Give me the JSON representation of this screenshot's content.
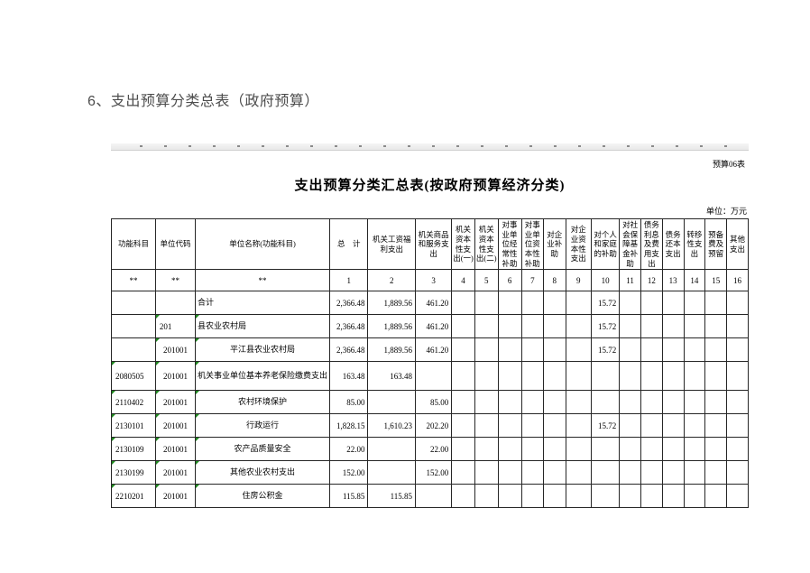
{
  "page": {
    "heading": "6、支出预算分类总表（政府预算）"
  },
  "sheet": {
    "form_code": "预算06表",
    "title": "支出预算分类汇总表(按政府预算经济分类)",
    "unit_note": "单位：万元"
  },
  "table": {
    "columns": [
      {
        "label": "功能科目",
        "code": "**"
      },
      {
        "label": "单位代码",
        "code": "**"
      },
      {
        "label": "单位名称(功能科目)",
        "code": "**"
      },
      {
        "label": "总　计",
        "code": "1"
      },
      {
        "label": "机关工资福利支出",
        "code": "2"
      },
      {
        "label": "机关商品和服务支出",
        "code": "3"
      },
      {
        "label": "机关资本性支出(一)",
        "code": "4"
      },
      {
        "label": "机关资本性支出(二)",
        "code": "5"
      },
      {
        "label": "对事业单位经常性补助",
        "code": "6"
      },
      {
        "label": "对事业单位资本性补助",
        "code": "7"
      },
      {
        "label": "对企业补助",
        "code": "8"
      },
      {
        "label": "对企业资本性支出",
        "code": "9"
      },
      {
        "label": "对个人和家庭的补助",
        "code": "10"
      },
      {
        "label": "对社会保障基金补助",
        "code": "11"
      },
      {
        "label": "债务利息及费用支出",
        "code": "12"
      },
      {
        "label": "债务还本支出",
        "code": "13"
      },
      {
        "label": "转移性支出",
        "code": "14"
      },
      {
        "label": "预备费及预留",
        "code": "15"
      },
      {
        "label": "其他支出",
        "code": "16"
      }
    ],
    "rows": [
      [
        "",
        "",
        "合计",
        "2,366.48",
        "1,889.56",
        "461.20",
        "",
        "",
        "",
        "",
        "",
        "",
        "15.72",
        "",
        "",
        "",
        "",
        "",
        ""
      ],
      [
        "",
        "201",
        "县农业农村局",
        "2,366.48",
        "1,889.56",
        "461.20",
        "",
        "",
        "",
        "",
        "",
        "",
        "15.72",
        "",
        "",
        "",
        "",
        "",
        ""
      ],
      [
        "",
        "201001",
        "平江县农业农村局",
        "2,366.48",
        "1,889.56",
        "461.20",
        "",
        "",
        "",
        "",
        "",
        "",
        "15.72",
        "",
        "",
        "",
        "",
        "",
        ""
      ],
      [
        "2080505",
        "201001",
        "机关事业单位基本养老保险缴费支出",
        "163.48",
        "163.48",
        "",
        "",
        "",
        "",
        "",
        "",
        "",
        "",
        "",
        "",
        "",
        "",
        "",
        ""
      ],
      [
        "2110402",
        "201001",
        "农村环境保护",
        "85.00",
        "",
        "85.00",
        "",
        "",
        "",
        "",
        "",
        "",
        "",
        "",
        "",
        "",
        "",
        "",
        ""
      ],
      [
        "2130101",
        "201001",
        "行政运行",
        "1,828.15",
        "1,610.23",
        "202.20",
        "",
        "",
        "",
        "",
        "",
        "",
        "15.72",
        "",
        "",
        "",
        "",
        "",
        ""
      ],
      [
        "2130109",
        "201001",
        "农产品质量安全",
        "22.00",
        "",
        "22.00",
        "",
        "",
        "",
        "",
        "",
        "",
        "",
        "",
        "",
        "",
        "",
        "",
        ""
      ],
      [
        "2130199",
        "201001",
        "其他农业农村支出",
        "152.00",
        "",
        "152.00",
        "",
        "",
        "",
        "",
        "",
        "",
        "",
        "",
        "",
        "",
        "",
        "",
        ""
      ],
      [
        "2210201",
        "201001",
        "住房公积金",
        "115.85",
        "115.85",
        "",
        "",
        "",
        "",
        "",
        "",
        "",
        "",
        "",
        "",
        "",
        "",
        "",
        ""
      ]
    ]
  },
  "colors": {
    "heading_text": "#4d4d4d",
    "table_border": "#262626",
    "flag_triangle_green": "#1f8a1f",
    "ruler_background": "#efefef"
  }
}
